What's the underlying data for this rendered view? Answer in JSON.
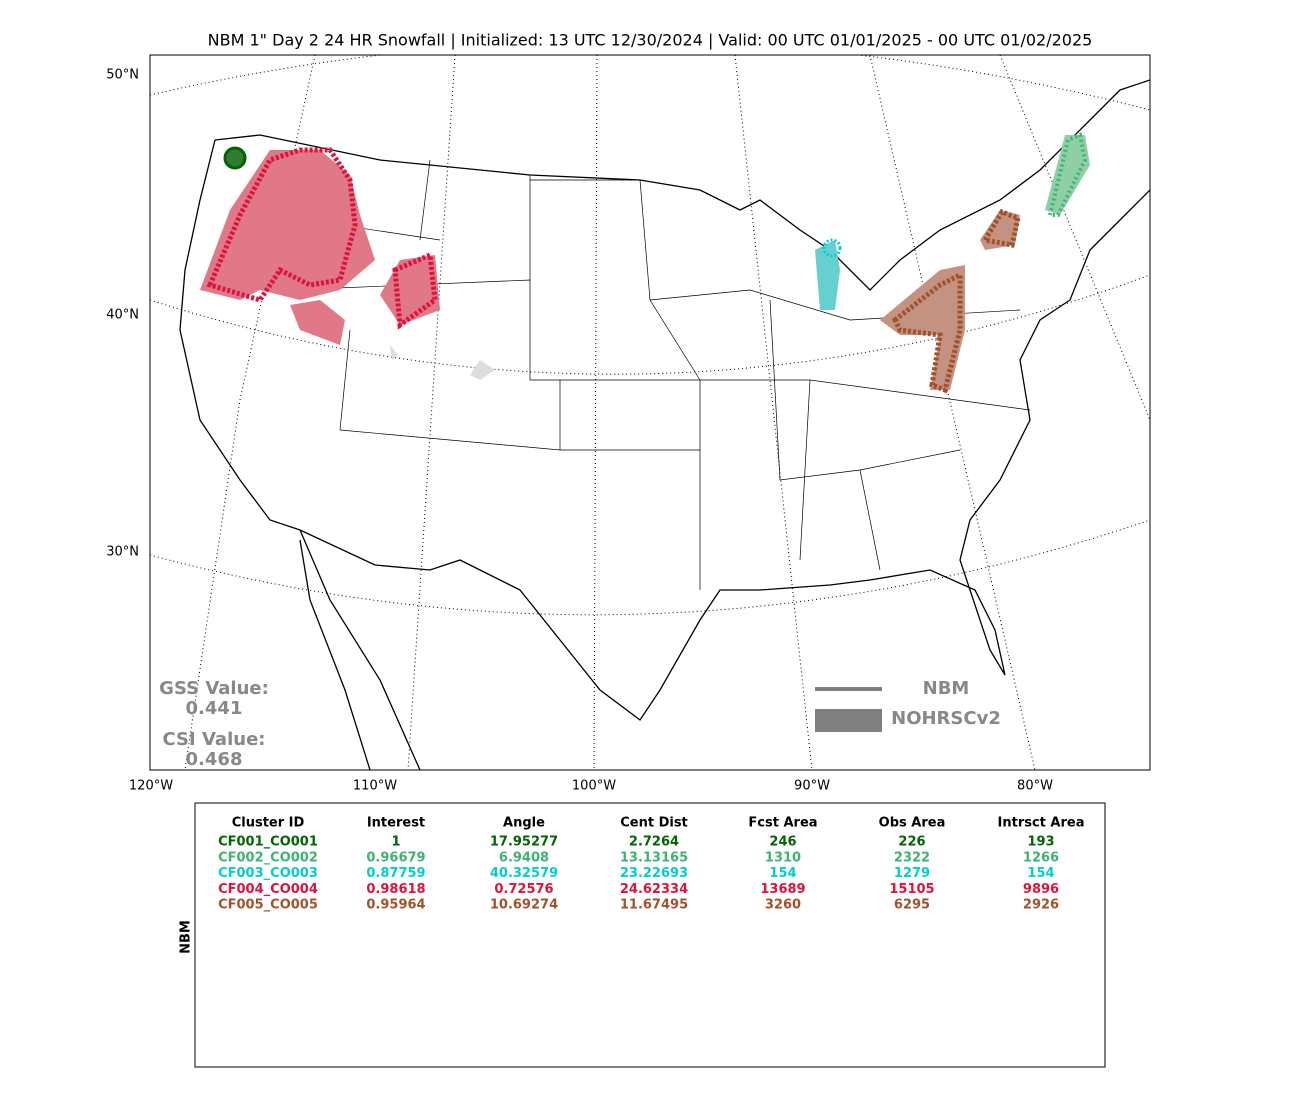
{
  "title": "NBM 1\" Day 2 24 HR Snowfall | Initialized: 13 UTC 12/30/2024 | Valid: 00 UTC 01/01/2025 - 00 UTC 01/02/2025",
  "map": {
    "lat_labels": [
      "50°N",
      "40°N",
      "30°N"
    ],
    "lon_labels": [
      "120°W",
      "110°W",
      "100°W",
      "90°W",
      "80°W"
    ]
  },
  "scores": {
    "gss_label": "GSS Value:",
    "gss_value": 0.441,
    "csi_label": "CSI Value:",
    "csi_value": 0.468
  },
  "legend": {
    "forecast": "NBM",
    "observed": "NOHRSCv2"
  },
  "table": {
    "side_label": "NBM",
    "columns": [
      "Cluster ID",
      "Interest",
      "Angle",
      "Cent Dist",
      "Fcst Area",
      "Obs Area",
      "Intrsct Area"
    ],
    "row_colors": [
      "#006400",
      "#3cb371",
      "#00ced1",
      "#dc143c",
      "#a0522d"
    ],
    "rows": [
      [
        "CF001_CO001",
        1,
        17.95277,
        2.7264,
        246,
        226,
        193
      ],
      [
        "CF002_CO002",
        0.96679,
        6.9408,
        13.13165,
        1310,
        2322,
        1266
      ],
      [
        "CF003_CO003",
        0.87759,
        40.32579,
        23.22693,
        154,
        1279,
        154
      ],
      [
        "CF004_CO004",
        0.98618,
        0.72576,
        24.62334,
        13689,
        15105,
        9896
      ],
      [
        "CF005_CO005",
        0.95964,
        10.69274,
        11.67495,
        3260,
        6295,
        2926
      ]
    ]
  }
}
